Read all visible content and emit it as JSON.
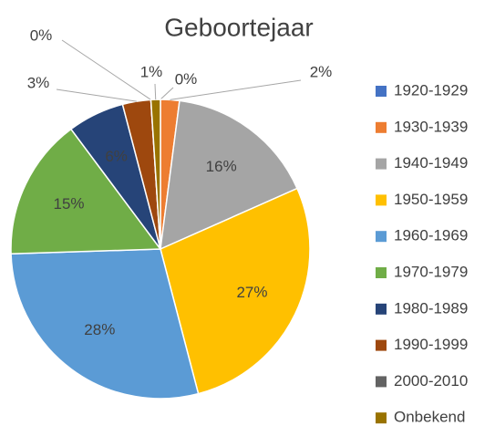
{
  "chart_data": {
    "type": "pie",
    "title": "Geboortejaar",
    "categories": [
      "1920-1929",
      "1930-1939",
      "1940-1949",
      "1950-1959",
      "1960-1969",
      "1970-1979",
      "1980-1989",
      "1990-1999",
      "2000-2010",
      "Onbekend"
    ],
    "values": [
      0,
      2,
      16,
      27,
      28,
      15,
      6,
      3,
      0,
      1
    ],
    "colors": [
      "#4472c4",
      "#ed7d31",
      "#a5a5a5",
      "#ffc000",
      "#5b9bd5",
      "#70ad47",
      "#264478",
      "#9e480e",
      "#636363",
      "#997300"
    ],
    "legend": "right"
  }
}
